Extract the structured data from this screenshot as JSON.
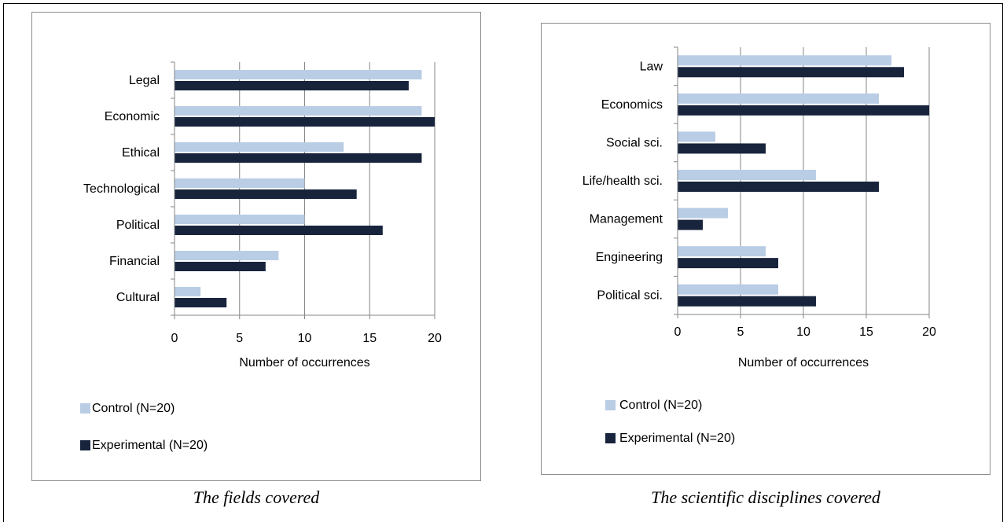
{
  "captions": {
    "left": "The fields covered",
    "right": "The scientific disciplines covered"
  },
  "colors": {
    "control": "#b9cde5",
    "experimental": "#17243c",
    "grid": "#868686"
  },
  "chart_data": [
    {
      "type": "bar",
      "orientation": "horizontal",
      "categories": [
        "Legal",
        "Economic",
        "Ethical",
        "Technological",
        "Political",
        "Financial",
        "Cultural"
      ],
      "series": [
        {
          "name": "Control (N=20)",
          "values": [
            19,
            19,
            13,
            10,
            10,
            8,
            2
          ]
        },
        {
          "name": "Experimental (N=20)",
          "values": [
            18,
            20,
            19,
            14,
            16,
            7,
            4
          ]
        }
      ],
      "xlabel": "Number of occurrences",
      "xlim": [
        0,
        20
      ],
      "xticks": [
        0,
        5,
        10,
        15,
        20
      ],
      "grid": true,
      "legend_position": "bottom-left"
    },
    {
      "type": "bar",
      "orientation": "horizontal",
      "categories": [
        "Law",
        "Economics",
        "Social sci.",
        "Life/health sci.",
        "Management",
        "Engineering",
        "Political sci."
      ],
      "series": [
        {
          "name": "Control (N=20)",
          "values": [
            17,
            16,
            3,
            11,
            4,
            7,
            8
          ]
        },
        {
          "name": "Experimental (N=20)",
          "values": [
            18,
            20,
            7,
            16,
            2,
            8,
            11
          ]
        }
      ],
      "xlabel": "Number of occurrences",
      "xlim": [
        0,
        20
      ],
      "xticks": [
        0,
        5,
        10,
        15,
        20
      ],
      "grid": true,
      "legend_position": "bottom-left"
    }
  ]
}
